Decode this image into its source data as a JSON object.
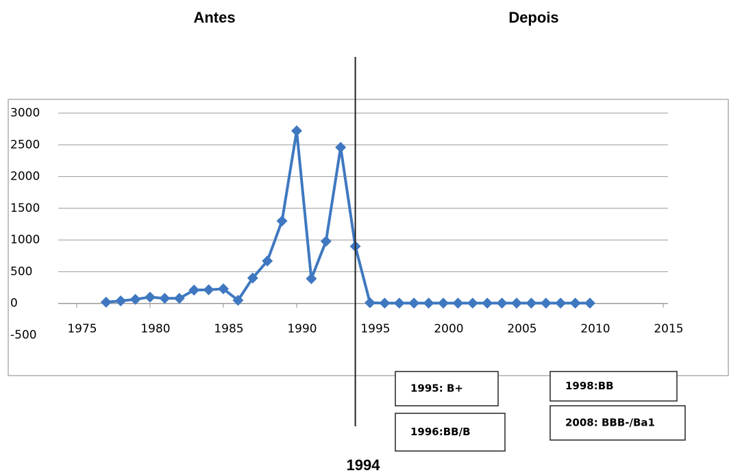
{
  "chart_data": {
    "type": "line",
    "headings": [
      "Antes",
      "Depois"
    ],
    "x": [
      1977,
      1978,
      1979,
      1980,
      1981,
      1982,
      1983,
      1984,
      1985,
      1986,
      1987,
      1988,
      1989,
      1990,
      1991,
      1992,
      1993,
      1994,
      1995,
      1996,
      1997,
      1998,
      1999,
      2000,
      2001,
      2002,
      2003,
      2004,
      2005,
      2006,
      2007,
      2008,
      2009,
      2010
    ],
    "series": [
      {
        "color": "#3f78c0",
        "values": [
          20,
          40,
          65,
          100,
          80,
          80,
          210,
          215,
          230,
          50,
          400,
          670,
          1300,
          2720,
          390,
          980,
          2460,
          900,
          10,
          5,
          5,
          5,
          5,
          5,
          5,
          5,
          5,
          5,
          5,
          5,
          5,
          5,
          5,
          5
        ]
      }
    ],
    "xlim": [
      1975,
      2015
    ],
    "xticks": [
      1975,
      1980,
      1985,
      1990,
      1995,
      2000,
      2005,
      2010,
      2015
    ],
    "ylim": [
      -500,
      3000
    ],
    "yticks": [
      -500,
      0,
      500,
      1000,
      1500,
      2000,
      2500,
      3000
    ],
    "grid": true,
    "divider_x": 1994,
    "rating_boxes": [
      "1995: B+",
      "1998:BB",
      "1996:BB/B",
      "2008: BBB-/Ba1"
    ]
  }
}
